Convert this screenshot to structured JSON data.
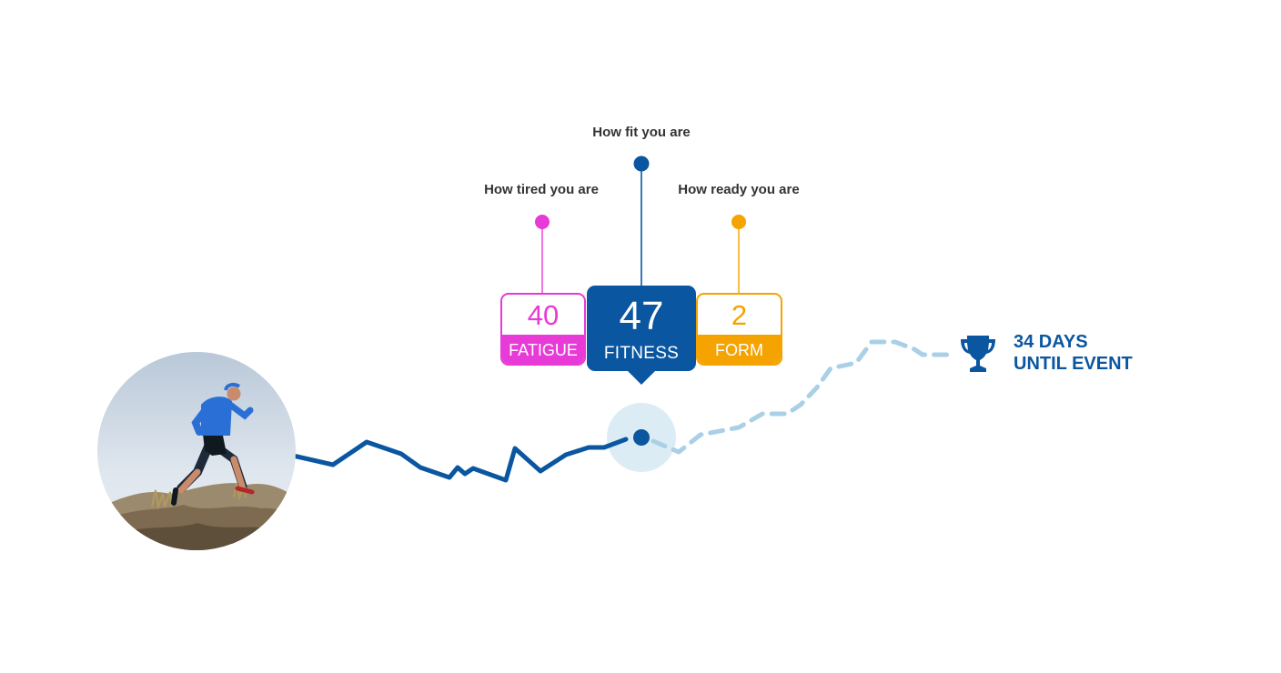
{
  "colors": {
    "fatigue": "#e83ad6",
    "fitness": "#0a56a0",
    "form": "#f5a300",
    "projection": "#a9d0e6",
    "halo": "#dcecf5",
    "caption": "#333333"
  },
  "metrics": {
    "fatigue": {
      "value": "40",
      "label": "FATIGUE",
      "caption": "How tired you are"
    },
    "fitness": {
      "value": "47",
      "label": "FITNESS",
      "caption": "How fit you are"
    },
    "form": {
      "value": "2",
      "label": "FORM",
      "caption": "How ready you are"
    }
  },
  "event": {
    "line1": "34 DAYS",
    "line2": "UNTIL EVENT",
    "icon": "trophy-icon"
  },
  "photo": {
    "icon": "runner-photo"
  }
}
